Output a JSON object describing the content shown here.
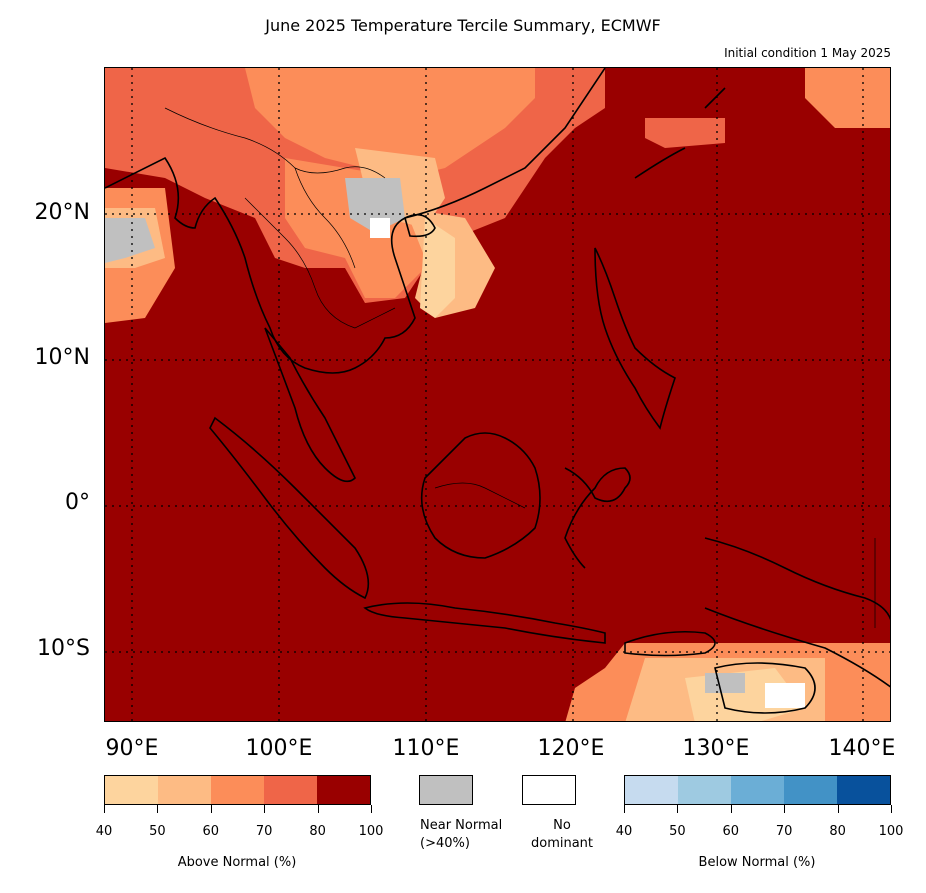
{
  "title": "June 2025 Temperature Tercile Summary, ECMWF",
  "subtitle": "Initial condition 1 May 2025",
  "map": {
    "lat_labels": [
      "20°N",
      "10°N",
      "0°",
      "10°S"
    ],
    "lon_labels": [
      "90°E",
      "100°E",
      "110°E",
      "120°E",
      "130°E",
      "140°E"
    ],
    "background_color": "#990000"
  },
  "legend": {
    "above": {
      "title": "Above Normal (%)",
      "ticks": [
        "40",
        "50",
        "60",
        "70",
        "80",
        "100"
      ],
      "colors": [
        "#fdd49e",
        "#fdbb84",
        "#fc8d59",
        "#ef6548",
        "#990000"
      ]
    },
    "near_normal": {
      "label_line1": "Near Normal",
      "label_line2": "(>40%)",
      "color": "#c0c0c0"
    },
    "no_dominant": {
      "label_line1": "No",
      "label_line2": "dominant",
      "color": "#ffffff"
    },
    "below": {
      "title": "Below Normal (%)",
      "ticks": [
        "40",
        "50",
        "60",
        "70",
        "80",
        "100"
      ],
      "colors": [
        "#c6dbef",
        "#9ecae1",
        "#6baed6",
        "#4292c6",
        "#08519c"
      ]
    }
  }
}
